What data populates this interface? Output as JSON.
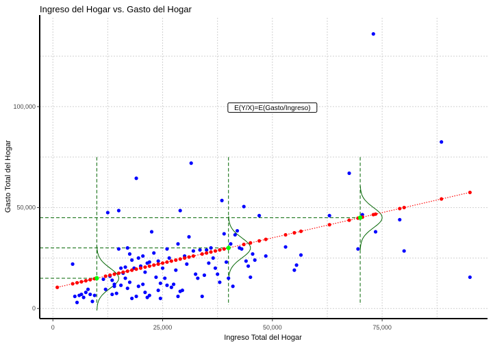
{
  "chart_data": {
    "type": "scatter",
    "title": "Ingreso del Hogar vs. Gasto del Hogar",
    "xlabel": "Ingreso Total del Hogar",
    "ylabel": "Gasto Total del Hogar",
    "xlim": [
      -3000,
      99000
    ],
    "ylim": [
      -5000,
      144000
    ],
    "x_ticks": [
      0,
      25000,
      50000,
      75000
    ],
    "y_ticks": [
      0,
      50000,
      100000
    ],
    "x_tick_labels": [
      "0",
      "25,000",
      "50,000",
      "75,000"
    ],
    "y_tick_labels": [
      "0",
      "50,000",
      "100,000"
    ],
    "grid": true,
    "annotation": {
      "text": "E(Y/X)=E(Gasto/Ingreso)",
      "x": 50000,
      "y": 99500
    },
    "regression_line": {
      "intercept": 10000,
      "slope": 0.5,
      "x_range": [
        1000,
        95000
      ],
      "color": "#ff0000",
      "style": "dotted"
    },
    "conditional_points": [
      {
        "x": 10000,
        "y": 15000
      },
      {
        "x": 40000,
        "y": 30000
      },
      {
        "x": 70000,
        "y": 45000
      }
    ],
    "density_curves": {
      "at_x": [
        10000,
        40000,
        70000
      ],
      "sd": 5000,
      "peak_width": 5000,
      "color": "#006400"
    },
    "colors": {
      "observed": "#0000ff",
      "fitted": "#ff0000",
      "conditional": "#00ff00",
      "guides": "#006400"
    },
    "series": [
      {
        "role": "observed",
        "points": [
          [
            4500,
            22000
          ],
          [
            5000,
            6000
          ],
          [
            5500,
            3000
          ],
          [
            6000,
            6500
          ],
          [
            6500,
            7000
          ],
          [
            7000,
            5500
          ],
          [
            7500,
            8000
          ],
          [
            8000,
            9500
          ],
          [
            8500,
            7000
          ],
          [
            9000,
            3500
          ],
          [
            9500,
            6500
          ],
          [
            11500,
            14500
          ],
          [
            12500,
            47500
          ],
          [
            13000,
            16000
          ],
          [
            13500,
            14000
          ],
          [
            14000,
            11000
          ],
          [
            14500,
            7500
          ],
          [
            15000,
            48500
          ],
          [
            15500,
            11500
          ],
          [
            16000,
            17500
          ],
          [
            16500,
            15000
          ],
          [
            17000,
            30000
          ],
          [
            17500,
            27000
          ],
          [
            18000,
            24000
          ],
          [
            18500,
            20000
          ],
          [
            19000,
            64500
          ],
          [
            19500,
            25000
          ],
          [
            20000,
            21000
          ],
          [
            20500,
            26000
          ],
          [
            21000,
            18000
          ],
          [
            21500,
            22500
          ],
          [
            22000,
            23000
          ],
          [
            22500,
            38000
          ],
          [
            23000,
            27500
          ],
          [
            23500,
            15500
          ],
          [
            24000,
            23500
          ],
          [
            24500,
            12500
          ],
          [
            25000,
            20000
          ],
          [
            25500,
            15000
          ],
          [
            26000,
            29500
          ],
          [
            26500,
            25000
          ],
          [
            27000,
            10500
          ],
          [
            27500,
            12000
          ],
          [
            28000,
            19000
          ],
          [
            28500,
            32000
          ],
          [
            29000,
            48500
          ],
          [
            29500,
            9000
          ],
          [
            30000,
            26000
          ],
          [
            30500,
            22000
          ],
          [
            31000,
            35500
          ],
          [
            31500,
            72000
          ],
          [
            32000,
            28500
          ],
          [
            32500,
            17000
          ],
          [
            33000,
            15000
          ],
          [
            33500,
            29000
          ],
          [
            34000,
            6000
          ],
          [
            34500,
            16500
          ],
          [
            35000,
            29000
          ],
          [
            35500,
            22500
          ],
          [
            36000,
            30000
          ],
          [
            36500,
            25000
          ],
          [
            37000,
            20000
          ],
          [
            37500,
            17000
          ],
          [
            38000,
            13000
          ],
          [
            38500,
            53500
          ],
          [
            39000,
            37000
          ],
          [
            39500,
            23000
          ],
          [
            40000,
            15000
          ],
          [
            40500,
            32000
          ],
          [
            41000,
            11000
          ],
          [
            41500,
            36500
          ],
          [
            42000,
            38500
          ],
          [
            42500,
            30000
          ],
          [
            43000,
            29500
          ],
          [
            43500,
            50500
          ],
          [
            44000,
            23500
          ],
          [
            44500,
            21000
          ],
          [
            45000,
            15500
          ],
          [
            45500,
            27000
          ],
          [
            46000,
            24000
          ],
          [
            15000,
            29500
          ],
          [
            16500,
            20500
          ],
          [
            18000,
            5000
          ],
          [
            19000,
            6000
          ],
          [
            20500,
            12000
          ],
          [
            21000,
            8000
          ],
          [
            21500,
            5500
          ],
          [
            22000,
            6500
          ],
          [
            24000,
            9000
          ],
          [
            24500,
            5000
          ],
          [
            26000,
            11500
          ],
          [
            28500,
            6000
          ],
          [
            29000,
            8500
          ],
          [
            12000,
            9500
          ],
          [
            13500,
            7000
          ],
          [
            14000,
            12000
          ],
          [
            15500,
            20000
          ],
          [
            17000,
            10000
          ],
          [
            17500,
            13000
          ],
          [
            19500,
            11000
          ],
          [
            47000,
            46000
          ],
          [
            48500,
            26000
          ],
          [
            53000,
            30500
          ],
          [
            55000,
            19000
          ],
          [
            55500,
            21500
          ],
          [
            56500,
            26500
          ],
          [
            63000,
            46000
          ],
          [
            67500,
            67000
          ],
          [
            69500,
            29500
          ],
          [
            70500,
            46500
          ],
          [
            73000,
            136000
          ],
          [
            73500,
            38000
          ],
          [
            79000,
            44000
          ],
          [
            80000,
            28500
          ],
          [
            88500,
            82500
          ],
          [
            95000,
            15500
          ]
        ]
      },
      {
        "role": "fitted",
        "points": [
          [
            1000,
            10500
          ],
          [
            4500,
            12250
          ],
          [
            5500,
            12750
          ],
          [
            6500,
            13250
          ],
          [
            7500,
            13750
          ],
          [
            8500,
            14250
          ],
          [
            9500,
            14750
          ],
          [
            12000,
            16000
          ],
          [
            13000,
            16500
          ],
          [
            14000,
            17000
          ],
          [
            15000,
            17500
          ],
          [
            16000,
            18000
          ],
          [
            17000,
            18500
          ],
          [
            18000,
            19000
          ],
          [
            19000,
            19500
          ],
          [
            20000,
            20000
          ],
          [
            21000,
            20500
          ],
          [
            22000,
            21000
          ],
          [
            23000,
            21500
          ],
          [
            24000,
            22000
          ],
          [
            25000,
            22500
          ],
          [
            26000,
            23000
          ],
          [
            27000,
            23500
          ],
          [
            28000,
            24000
          ],
          [
            29000,
            24500
          ],
          [
            30000,
            25000
          ],
          [
            31000,
            25500
          ],
          [
            32000,
            26000
          ],
          [
            34000,
            27000
          ],
          [
            35000,
            27500
          ],
          [
            36000,
            28000
          ],
          [
            37000,
            28500
          ],
          [
            38000,
            29000
          ],
          [
            39000,
            29500
          ],
          [
            43500,
            31750
          ],
          [
            45000,
            32500
          ],
          [
            47000,
            33500
          ],
          [
            48500,
            34250
          ],
          [
            53000,
            36500
          ],
          [
            55000,
            37500
          ],
          [
            56500,
            38250
          ],
          [
            63000,
            41500
          ],
          [
            67500,
            43750
          ],
          [
            69500,
            44750
          ],
          [
            70500,
            45250
          ],
          [
            73000,
            46500
          ],
          [
            73500,
            46750
          ],
          [
            79000,
            49500
          ],
          [
            80000,
            50000
          ],
          [
            88500,
            54250
          ],
          [
            95000,
            57500
          ]
        ]
      }
    ]
  }
}
